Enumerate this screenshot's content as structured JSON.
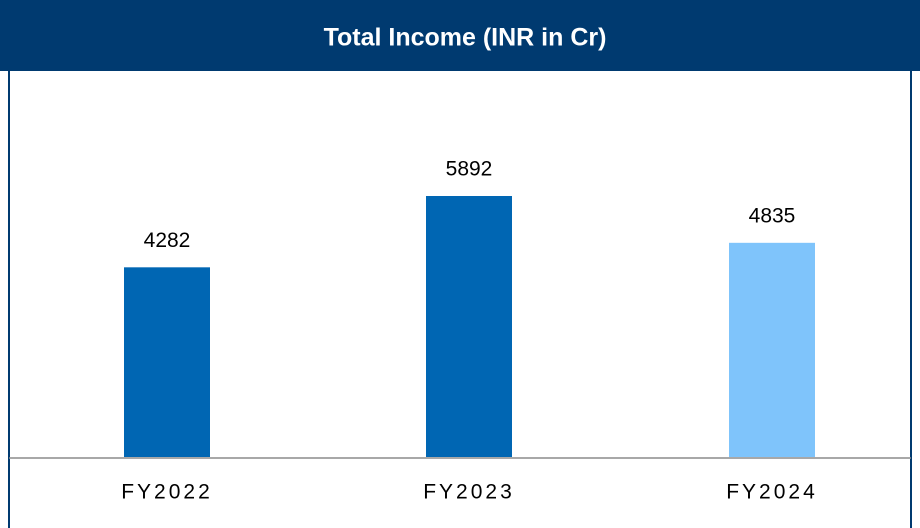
{
  "chart_data": {
    "type": "bar",
    "title": "Total Income (INR in Cr)",
    "categories": [
      "FY2022",
      "FY2023",
      "FY2024"
    ],
    "values": [
      4282,
      5892,
      4835
    ],
    "colors": [
      "#0066b3",
      "#0066b3",
      "#7fc4fb"
    ]
  }
}
